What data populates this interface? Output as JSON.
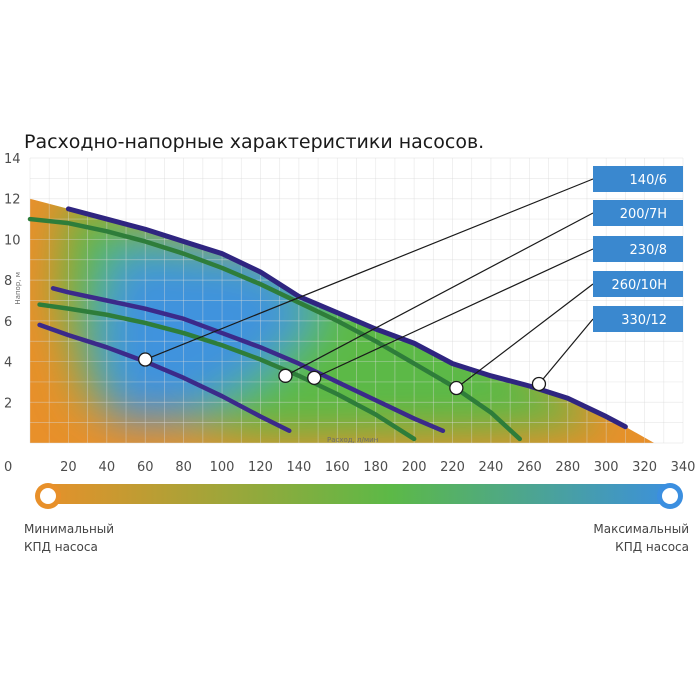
{
  "chart_data": {
    "type": "line",
    "title": "Расходно-напорные характеристики насосов.",
    "xlabel": "Расход, л/мин",
    "ylabel": "Напор, м",
    "xlim": [
      0,
      340
    ],
    "ylim": [
      0,
      14
    ],
    "x_ticks": [
      0,
      20,
      40,
      60,
      80,
      100,
      120,
      140,
      160,
      180,
      200,
      220,
      240,
      260,
      280,
      300,
      320,
      340
    ],
    "y_ticks": [
      2,
      4,
      6,
      8,
      10,
      12,
      14
    ],
    "grid": true,
    "legend_position": "right",
    "series": [
      {
        "name": "140/6",
        "color": "#3b2a8a",
        "x": [
          5,
          20,
          40,
          60,
          80,
          100,
          120,
          135
        ],
        "y": [
          5.8,
          5.3,
          4.7,
          4.0,
          3.2,
          2.3,
          1.3,
          0.6
        ],
        "marker": [
          60,
          4.1
        ]
      },
      {
        "name": "200/7Н",
        "color": "#2e7d3a",
        "x": [
          5,
          20,
          40,
          60,
          80,
          100,
          120,
          140,
          160,
          180,
          200
        ],
        "y": [
          6.8,
          6.6,
          6.3,
          5.9,
          5.4,
          4.8,
          4.1,
          3.3,
          2.4,
          1.4,
          0.2
        ],
        "marker": [
          133,
          3.3
        ]
      },
      {
        "name": "230/8",
        "color": "#3b2a8a",
        "x": [
          12,
          20,
          40,
          60,
          80,
          100,
          120,
          140,
          160,
          180,
          200,
          215
        ],
        "y": [
          7.6,
          7.4,
          7.0,
          6.6,
          6.1,
          5.4,
          4.7,
          3.9,
          3.0,
          2.1,
          1.2,
          0.6
        ],
        "marker": [
          148,
          3.2
        ]
      },
      {
        "name": "260/10Н",
        "color": "#2e7d3a",
        "x": [
          0,
          20,
          40,
          60,
          80,
          100,
          120,
          140,
          160,
          180,
          200,
          220,
          240,
          255
        ],
        "y": [
          11.0,
          10.8,
          10.4,
          9.9,
          9.3,
          8.6,
          7.8,
          6.9,
          6.0,
          5.0,
          3.9,
          2.8,
          1.5,
          0.2
        ],
        "marker": [
          222,
          2.7
        ]
      },
      {
        "name": "330/12",
        "color": "#2f2580",
        "x": [
          20,
          40,
          60,
          80,
          100,
          120,
          140,
          160,
          180,
          200,
          220,
          240,
          260,
          280,
          300,
          310
        ],
        "y": [
          11.5,
          11.0,
          10.5,
          9.9,
          9.3,
          8.4,
          7.2,
          6.4,
          5.6,
          4.9,
          3.9,
          3.3,
          2.8,
          2.2,
          1.3,
          0.8
        ],
        "marker": [
          265,
          2.9
        ]
      }
    ],
    "colorbar": {
      "left_label": "Минимальный КПД насоса",
      "right_label": "Максимальный КПД насоса",
      "colors": [
        "#e8902a",
        "#5cb947",
        "#3b8fe0"
      ]
    }
  },
  "legend_labels": [
    "140/6",
    "200/7Н",
    "230/8",
    "260/10Н",
    "330/12"
  ],
  "efficiency_bar": {
    "min_line1": "Минимальный",
    "min_line2": "КПД насоса",
    "max_line1": "Максимальный",
    "max_line2": "КПД насоса"
  },
  "colors": {
    "legend_box": "#3a88cf",
    "grid": "#d9d9d9",
    "orange": "#e8902a",
    "green": "#5cb947",
    "blue": "#3b8fe0"
  }
}
